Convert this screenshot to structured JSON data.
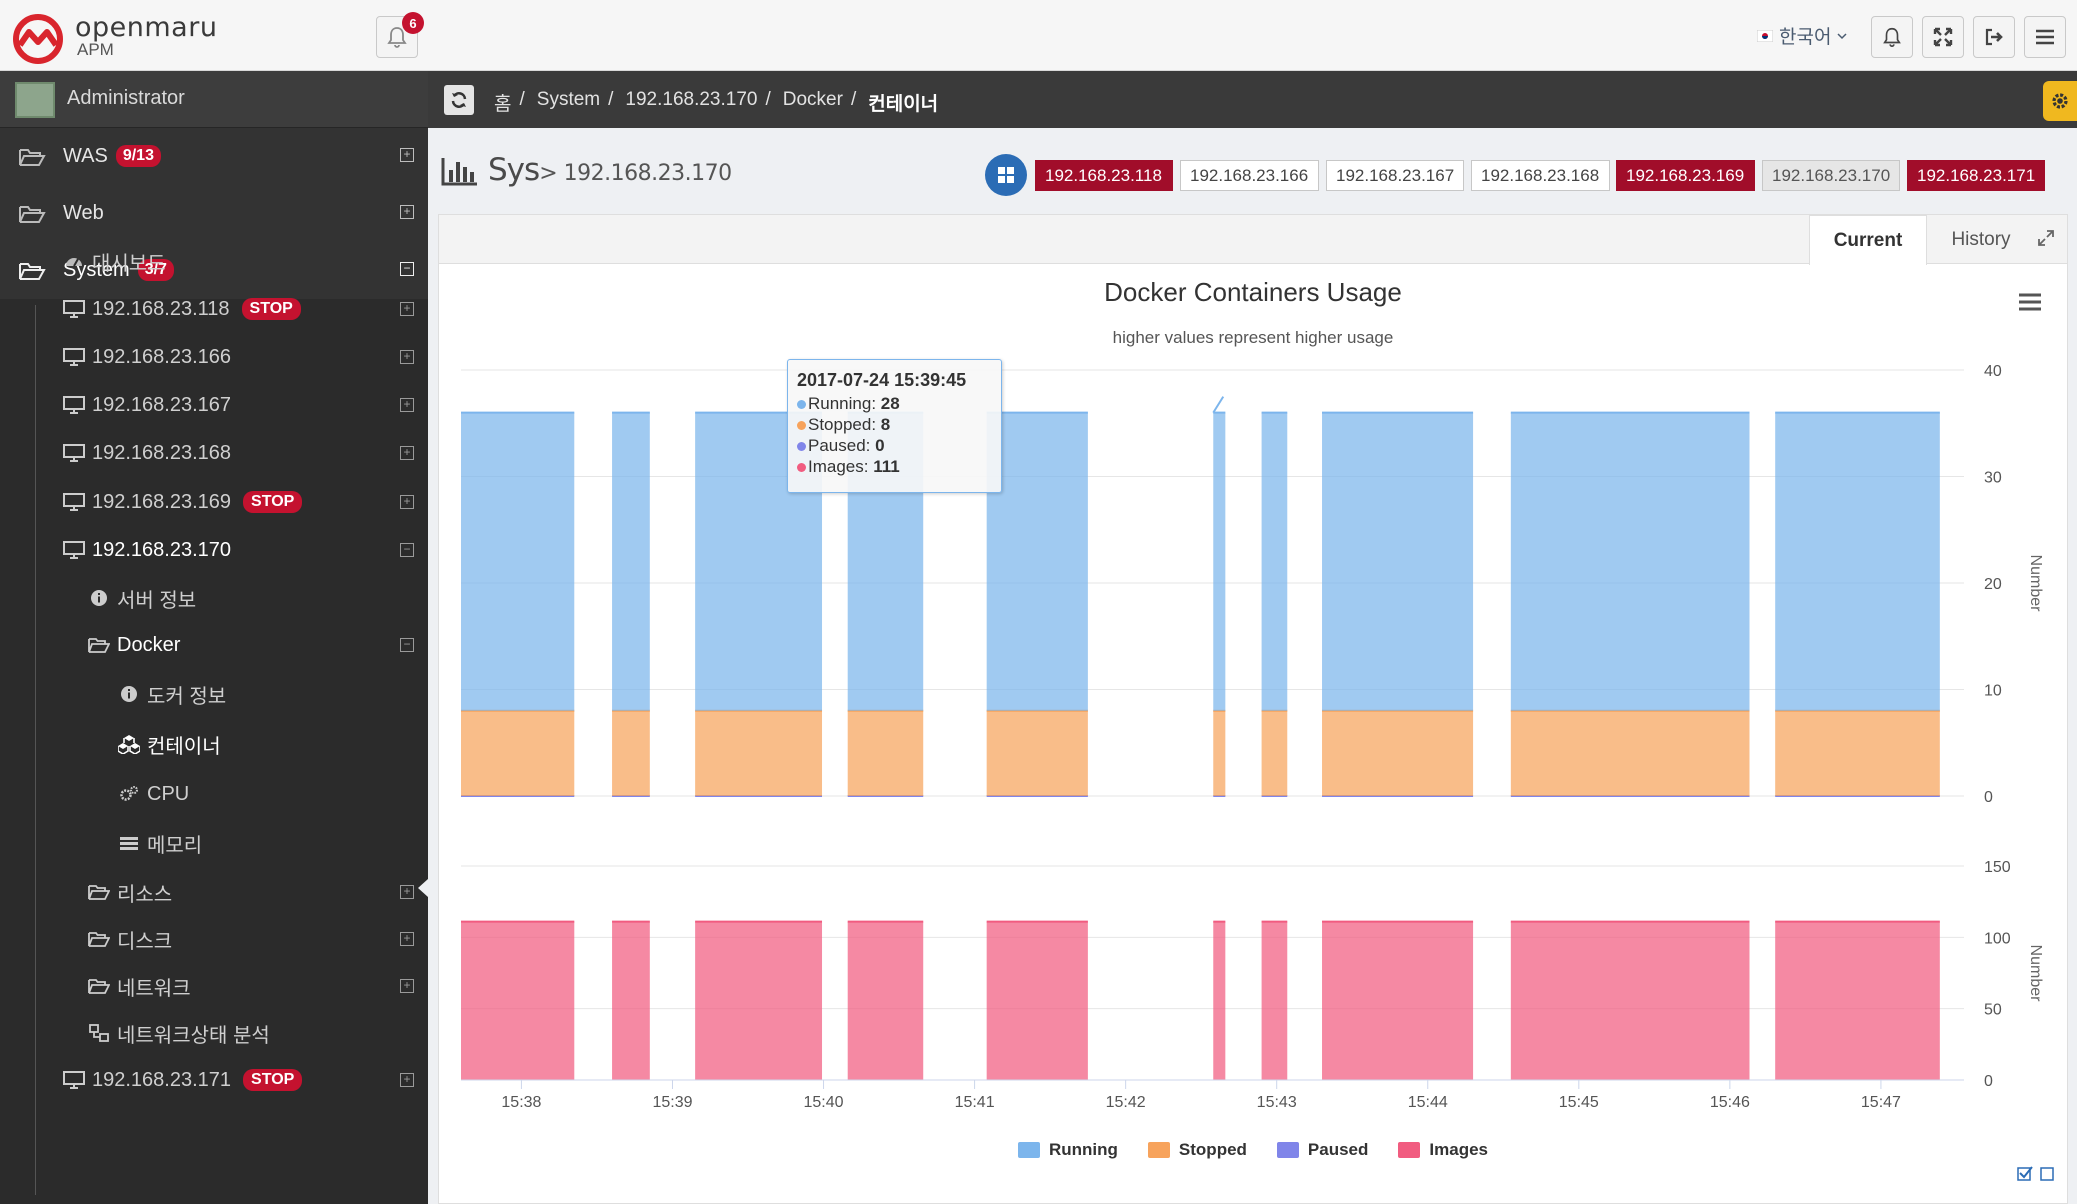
{
  "header": {
    "brand": "openmaru",
    "brand_sub": "APM",
    "notification_count": "6",
    "language": "한국어"
  },
  "sidebar": {
    "user": "Administrator",
    "top_items": [
      {
        "label": "WAS",
        "badge": "9/13"
      },
      {
        "label": "Web",
        "badge": ""
      },
      {
        "label": "System",
        "badge": "3/7"
      }
    ],
    "items": [
      {
        "label": "대시보드",
        "badge": "",
        "icon": "dashboard-icon"
      },
      {
        "label": "192.168.23.118",
        "badge": "STOP",
        "icon": "monitor-icon"
      },
      {
        "label": "192.168.23.166",
        "badge": "",
        "icon": "monitor-icon"
      },
      {
        "label": "192.168.23.167",
        "badge": "",
        "icon": "monitor-icon"
      },
      {
        "label": "192.168.23.168",
        "badge": "",
        "icon": "monitor-icon"
      },
      {
        "label": "192.168.23.169",
        "badge": "STOP",
        "icon": "monitor-icon"
      },
      {
        "label": "192.168.23.170",
        "badge": "",
        "icon": "monitor-icon"
      },
      {
        "label": "서버 정보",
        "badge": "",
        "icon": "info-icon"
      },
      {
        "label": "Docker",
        "badge": "",
        "icon": "folder-open-icon"
      },
      {
        "label": "도커 정보",
        "badge": "",
        "icon": "info-icon"
      },
      {
        "label": "컨테이너",
        "badge": "",
        "icon": "cubes-icon"
      },
      {
        "label": "CPU",
        "badge": "",
        "icon": "cogs-icon"
      },
      {
        "label": "메모리",
        "badge": "",
        "icon": "memory-icon"
      },
      {
        "label": "리소스",
        "badge": "",
        "icon": "folder-icon"
      },
      {
        "label": "디스크",
        "badge": "",
        "icon": "folder-icon"
      },
      {
        "label": "네트워크",
        "badge": "",
        "icon": "folder-icon"
      },
      {
        "label": "네트워크상태 분석",
        "badge": "",
        "icon": "network-icon"
      },
      {
        "label": "192.168.23.171",
        "badge": "STOP",
        "icon": "monitor-icon"
      }
    ]
  },
  "breadcrumb": [
    "홈",
    "System",
    "192.168.23.170",
    "Docker",
    "컨테이너"
  ],
  "page": {
    "title": "Sys",
    "subtitle": "> 192.168.23.170"
  },
  "servers": [
    {
      "ip": "192.168.23.118",
      "state": "down"
    },
    {
      "ip": "192.168.23.166",
      "state": "up"
    },
    {
      "ip": "192.168.23.167",
      "state": "up"
    },
    {
      "ip": "192.168.23.168",
      "state": "up"
    },
    {
      "ip": "192.168.23.169",
      "state": "down"
    },
    {
      "ip": "192.168.23.170",
      "state": "selected"
    },
    {
      "ip": "192.168.23.171",
      "state": "down"
    }
  ],
  "tabs": [
    {
      "label": "Current",
      "active": true
    },
    {
      "label": "History",
      "active": false
    }
  ],
  "tooltip": {
    "time": "2017-07-24 15:39:45",
    "rows": [
      {
        "name": "Running",
        "value": "28"
      },
      {
        "name": "Stopped",
        "value": "8"
      },
      {
        "name": "Paused",
        "value": "0"
      },
      {
        "name": "Images",
        "value": "111"
      }
    ]
  },
  "chart_data": {
    "type": "area",
    "title": "Docker Containers Usage",
    "subtitle": "higher values represent higher usage",
    "x_ticks": [
      "15:38",
      "15:39",
      "15:40",
      "15:41",
      "15:42",
      "15:43",
      "15:44",
      "15:45",
      "15:46",
      "15:47"
    ],
    "x_range_minutes": [
      37.6,
      47.55
    ],
    "segments_minutes": [
      [
        37.6,
        38.35
      ],
      [
        38.6,
        38.85
      ],
      [
        39.15,
        39.99
      ],
      [
        40.16,
        40.66
      ],
      [
        41.08,
        41.75
      ],
      [
        42.58,
        42.66
      ],
      [
        42.9,
        43.07
      ],
      [
        43.3,
        44.3
      ],
      [
        44.55,
        46.13
      ],
      [
        46.3,
        47.39
      ]
    ],
    "colors": {
      "Running": "#7cb5ec",
      "Stopped": "#f7a35c",
      "Paused": "#8085e9",
      "Images": "#f15c80"
    },
    "panels": [
      {
        "ylabel": "Number",
        "ylim": [
          0,
          40
        ],
        "y_ticks": [
          0,
          10,
          20,
          30,
          40
        ],
        "stacked": true,
        "series": [
          {
            "name": "Paused",
            "value": 0
          },
          {
            "name": "Stopped",
            "value": 8
          },
          {
            "name": "Running",
            "value": 28
          }
        ]
      },
      {
        "ylabel": "Number",
        "ylim": [
          0,
          150
        ],
        "y_ticks": [
          0,
          50,
          100,
          150
        ],
        "stacked": false,
        "series": [
          {
            "name": "Images",
            "value": 111
          }
        ]
      }
    ],
    "legend": [
      "Running",
      "Stopped",
      "Paused",
      "Images"
    ],
    "legend_position": "bottom-center"
  }
}
